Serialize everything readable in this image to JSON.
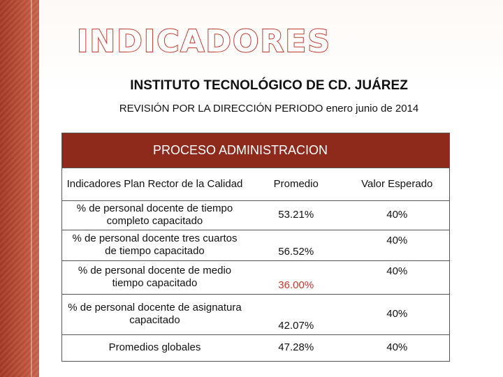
{
  "slide": {
    "title": "INDICADORES",
    "institute": "INSTITUTO TECNOLÓGICO DE CD. JUÁREZ",
    "review": "REVISIÓN POR LA DIRECCIÓN PERIODO  enero junio de 2014"
  },
  "table": {
    "section_header": "PROCESO   ADMINISTRACION",
    "columns": [
      "Indicadores  Plan Rector de la Calidad",
      "Promedio",
      "Valor Esperado"
    ],
    "rows": [
      {
        "indicator": "% de personal docente de tiempo completo capacitado",
        "average": "53.21%",
        "expected": "40%"
      },
      {
        "indicator": "% de personal docente tres cuartos de tiempo capacitado",
        "average": "56.52%",
        "expected": "40%"
      },
      {
        "indicator": "% de personal docente de medio tiempo capacitado",
        "average": "36.00%",
        "expected": "40%"
      },
      {
        "indicator": "% de personal docente de asignatura capacitado",
        "average": "42.07%",
        "expected": "40%"
      }
    ],
    "totals": {
      "label": "Promedios globales",
      "average": "47.28%",
      "expected": "40%"
    }
  },
  "colors": {
    "accent": "#c0392b",
    "header_bg": "#8e2a1c",
    "side_band": "#b84a34"
  }
}
